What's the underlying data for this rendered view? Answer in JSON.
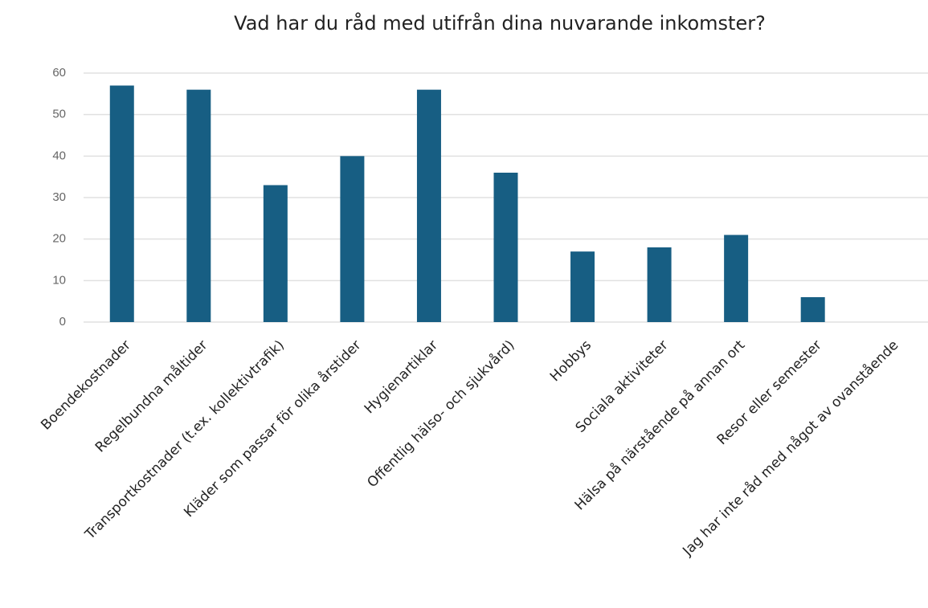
{
  "chart_data": {
    "type": "bar",
    "title": "Vad har du råd med utifrån dina nuvarande inkomster?",
    "categories": [
      "Boendekostnader",
      "Regelbundna måltider",
      "Transportkostnader (t.ex. kollektivtrafik)",
      "Kläder som passar för olika årstider",
      "Hygienartiklar",
      "Offentlig hälso- och sjukvård)",
      "Hobbys",
      "Sociala aktiviteter",
      "Hälsa på närstående på annan ort",
      "Resor eller semester",
      "Jag har inte råd med något av ovanstående"
    ],
    "values": [
      57,
      56,
      33,
      40,
      56,
      36,
      17,
      18,
      21,
      6,
      0
    ],
    "color": "#175e83",
    "ylim": [
      0,
      60
    ],
    "yticks": [
      0,
      10,
      20,
      30,
      40,
      50,
      60
    ],
    "grid": true
  }
}
